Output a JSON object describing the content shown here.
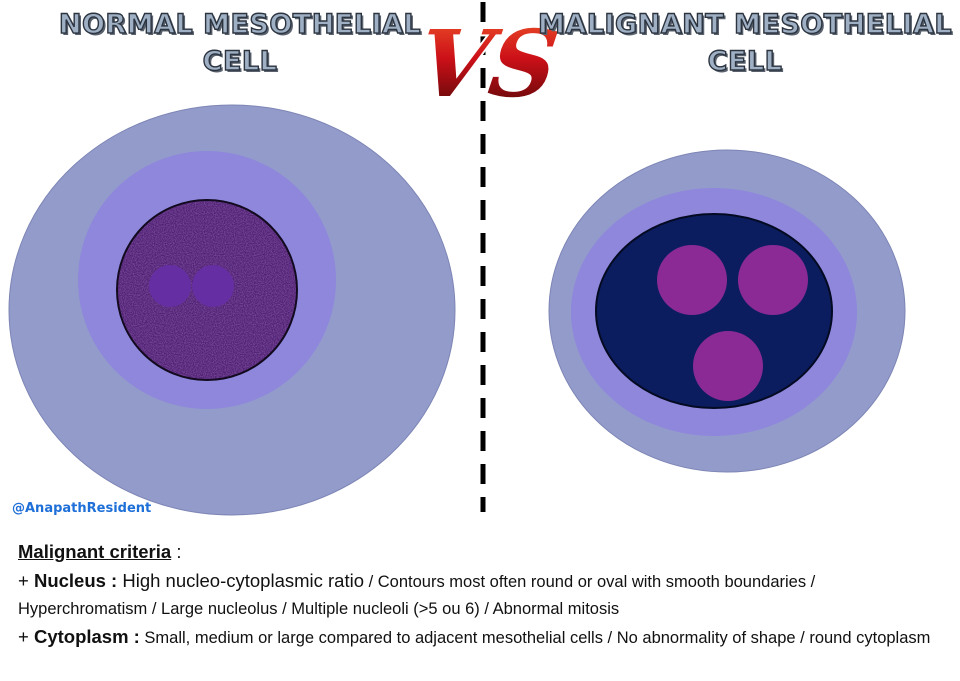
{
  "titles": {
    "left_line1": "NORMAL MESOTHELIAL",
    "left_line2": "CELL",
    "vs": "VS",
    "right_line1": "MALIGNANT MESOTHELIAL",
    "right_line2": "CELL"
  },
  "watermark": "@AnapathResident",
  "criteria": {
    "heading": "Malignant criteria",
    "heading_suffix": " :",
    "nucleus": {
      "prefix": "+ ",
      "term": "Nucleus :",
      "lead": " High nucleo-cytoplasmic ratio",
      "text": " / Contours most often round or oval with smooth boundaries / Hyperchromatism / Large nucleolus / Multiple nucleoli (>5 ou 6) / Abnormal mitosis"
    },
    "cytoplasm": {
      "prefix": "+ ",
      "term": "Cytoplasm :",
      "text": " Small, medium or large compared to adjacent mesothelial cells / No abnormality of shape / round cytoplasm"
    }
  },
  "colors": {
    "outer_cytoplasm": "#939bcb",
    "inner_cytoplasm": "#8e87dc",
    "normal_nucleus": "#4b1e6e",
    "normal_nucleolus": "#652ea3",
    "malignant_nucleus": "#0b1d5e",
    "malignant_nucleolus": "#8b2a95",
    "vs_red": "#cc1018"
  }
}
